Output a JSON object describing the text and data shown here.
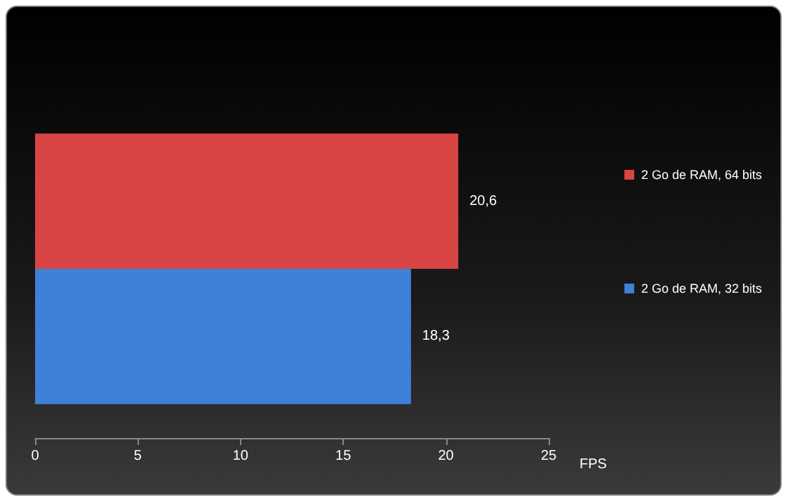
{
  "chart_data": {
    "type": "bar",
    "orientation": "horizontal",
    "categories": [
      null
    ],
    "series": [
      {
        "name": "2 Go de RAM, 64 bits",
        "color": "#d94444",
        "values": [
          20.6
        ],
        "value_labels": [
          "20,6"
        ]
      },
      {
        "name": "2 Go de RAM, 32 bits",
        "color": "#3f80d8",
        "values": [
          18.3
        ],
        "value_labels": [
          "18,3"
        ]
      }
    ],
    "xlabel": "FPS",
    "xlim": [
      0,
      25
    ],
    "xticks": [
      0,
      5,
      10,
      15,
      20,
      25
    ],
    "grid": false,
    "legend": "right"
  }
}
